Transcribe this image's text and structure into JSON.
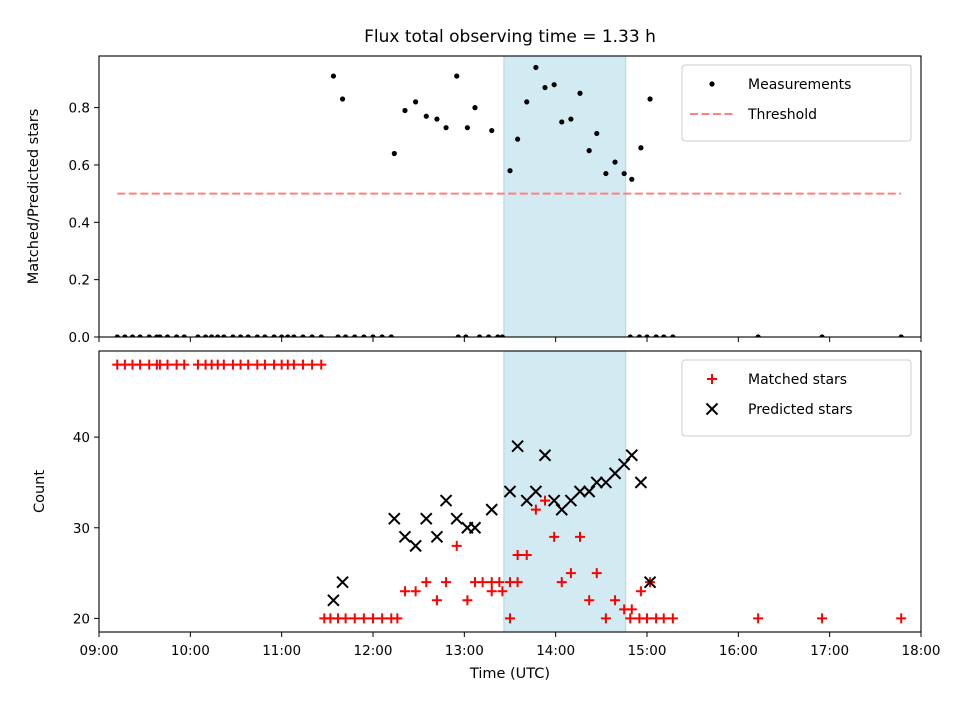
{
  "chart_data": [
    {
      "type": "scatter",
      "title": "Flux total observing time = 1.33 h",
      "ylabel": "Matched/Predicted stars",
      "xlabel": "",
      "xlim": [
        "09:00",
        "18:00"
      ],
      "ylim": [
        0,
        0.98
      ],
      "yticks": [
        "0.0",
        "0.2",
        "0.4",
        "0.6",
        "0.8"
      ],
      "legend_position": "top-right",
      "shaded_interval": {
        "start": "13:26",
        "end": "14:46",
        "color": "#add8e6"
      },
      "series": [
        {
          "name": "Measurements",
          "marker": "dot",
          "color": "#000000",
          "points": [
            [
              "09:12",
              0
            ],
            [
              "09:17",
              0
            ],
            [
              "09:22",
              0
            ],
            [
              "09:27",
              0
            ],
            [
              "09:33",
              0
            ],
            [
              "09:38",
              0
            ],
            [
              "09:40",
              0
            ],
            [
              "09:45",
              0
            ],
            [
              "09:51",
              0
            ],
            [
              "09:56",
              0
            ],
            [
              "10:05",
              0
            ],
            [
              "10:10",
              0
            ],
            [
              "10:14",
              0
            ],
            [
              "10:18",
              0
            ],
            [
              "10:22",
              0
            ],
            [
              "10:28",
              0
            ],
            [
              "10:33",
              0
            ],
            [
              "10:38",
              0
            ],
            [
              "10:44",
              0
            ],
            [
              "10:49",
              0
            ],
            [
              "10:55",
              0
            ],
            [
              "11:00",
              0
            ],
            [
              "11:04",
              0
            ],
            [
              "11:08",
              0
            ],
            [
              "11:14",
              0
            ],
            [
              "11:20",
              0
            ],
            [
              "11:26",
              0
            ],
            [
              "11:34",
              0.91
            ],
            [
              "11:40",
              0.83
            ],
            [
              "11:37",
              0
            ],
            [
              "11:42",
              0
            ],
            [
              "11:48",
              0
            ],
            [
              "11:54",
              0
            ],
            [
              "12:00",
              0
            ],
            [
              "12:06",
              0
            ],
            [
              "12:12",
              0
            ],
            [
              "12:14",
              0.64
            ],
            [
              "12:21",
              0.79
            ],
            [
              "12:28",
              0.82
            ],
            [
              "12:35",
              0.77
            ],
            [
              "12:42",
              0.76
            ],
            [
              "12:48",
              0.73
            ],
            [
              "12:55",
              0.91
            ],
            [
              "13:02",
              0.73
            ],
            [
              "13:07",
              0.8
            ],
            [
              "12:56",
              0
            ],
            [
              "13:01",
              0
            ],
            [
              "13:10",
              0
            ],
            [
              "13:16",
              0
            ],
            [
              "13:22",
              0
            ],
            [
              "13:25",
              0
            ],
            [
              "13:18",
              0.72
            ],
            [
              "13:30",
              0.58
            ],
            [
              "13:35",
              0.69
            ],
            [
              "13:41",
              0.82
            ],
            [
              "13:47",
              0.94
            ],
            [
              "13:53",
              0.87
            ],
            [
              "13:59",
              0.88
            ],
            [
              "14:04",
              0.75
            ],
            [
              "14:10",
              0.76
            ],
            [
              "14:16",
              0.85
            ],
            [
              "14:22",
              0.65
            ],
            [
              "14:27",
              0.71
            ],
            [
              "14:33",
              0.57
            ],
            [
              "14:39",
              0.61
            ],
            [
              "14:45",
              0.57
            ],
            [
              "14:50",
              0.55
            ],
            [
              "14:56",
              0.66
            ],
            [
              "15:02",
              0.83
            ],
            [
              "14:49",
              0
            ],
            [
              "14:55",
              0
            ],
            [
              "15:00",
              0
            ],
            [
              "15:06",
              0
            ],
            [
              "15:11",
              0
            ],
            [
              "15:17",
              0
            ],
            [
              "16:13",
              0
            ],
            [
              "16:55",
              0
            ],
            [
              "17:47",
              0
            ]
          ]
        },
        {
          "name": "Threshold",
          "marker": "dashed-line",
          "color": "#ff7f7f",
          "points": [
            [
              "09:12",
              0.5
            ],
            [
              "17:47",
              0.5
            ]
          ]
        }
      ]
    },
    {
      "type": "scatter",
      "title": "",
      "ylabel": "Count",
      "xlabel": "Time (UTC)",
      "xlim": [
        "09:00",
        "18:00"
      ],
      "xticks": [
        "09:00",
        "10:00",
        "11:00",
        "12:00",
        "13:00",
        "14:00",
        "15:00",
        "16:00",
        "17:00",
        "18:00"
      ],
      "ylim": [
        18.5,
        49.5
      ],
      "yticks": [
        "20",
        "30",
        "40"
      ],
      "legend_position": "top-right",
      "shaded_interval": {
        "start": "13:26",
        "end": "14:46",
        "color": "#add8e6"
      },
      "series": [
        {
          "name": "Matched stars",
          "marker": "plus",
          "color": "#ff0000",
          "points": [
            [
              "09:12",
              48
            ],
            [
              "09:17",
              48
            ],
            [
              "09:22",
              48
            ],
            [
              "09:27",
              48
            ],
            [
              "09:33",
              48
            ],
            [
              "09:38",
              48
            ],
            [
              "09:40",
              48
            ],
            [
              "09:45",
              48
            ],
            [
              "09:51",
              48
            ],
            [
              "09:56",
              48
            ],
            [
              "10:05",
              48
            ],
            [
              "10:10",
              48
            ],
            [
              "10:14",
              48
            ],
            [
              "10:18",
              48
            ],
            [
              "10:22",
              48
            ],
            [
              "10:28",
              48
            ],
            [
              "10:33",
              48
            ],
            [
              "10:38",
              48
            ],
            [
              "10:44",
              48
            ],
            [
              "10:49",
              48
            ],
            [
              "10:55",
              48
            ],
            [
              "11:00",
              48
            ],
            [
              "11:04",
              48
            ],
            [
              "11:08",
              48
            ],
            [
              "11:14",
              48
            ],
            [
              "11:20",
              48
            ],
            [
              "11:26",
              48
            ],
            [
              "11:28",
              20
            ],
            [
              "11:32",
              20
            ],
            [
              "11:37",
              20
            ],
            [
              "11:42",
              20
            ],
            [
              "11:48",
              20
            ],
            [
              "11:54",
              20
            ],
            [
              "12:00",
              20
            ],
            [
              "12:06",
              20
            ],
            [
              "12:12",
              20
            ],
            [
              "12:16",
              20
            ],
            [
              "12:21",
              23
            ],
            [
              "12:28",
              23
            ],
            [
              "12:35",
              24
            ],
            [
              "12:42",
              22
            ],
            [
              "12:48",
              24
            ],
            [
              "12:55",
              28
            ],
            [
              "13:02",
              22
            ],
            [
              "13:07",
              24
            ],
            [
              "13:12",
              24
            ],
            [
              "13:18",
              24
            ],
            [
              "13:23",
              24
            ],
            [
              "13:30",
              24
            ],
            [
              "13:35",
              24
            ],
            [
              "13:18",
              23
            ],
            [
              "13:25",
              23
            ],
            [
              "13:30",
              20
            ],
            [
              "13:35",
              27
            ],
            [
              "13:41",
              27
            ],
            [
              "13:47",
              32
            ],
            [
              "13:53",
              33
            ],
            [
              "13:59",
              29
            ],
            [
              "14:04",
              24
            ],
            [
              "14:10",
              25
            ],
            [
              "14:16",
              29
            ],
            [
              "14:22",
              22
            ],
            [
              "14:27",
              25
            ],
            [
              "14:33",
              20
            ],
            [
              "14:39",
              22
            ],
            [
              "14:45",
              21
            ],
            [
              "14:50",
              21
            ],
            [
              "14:56",
              23
            ],
            [
              "15:02",
              24
            ],
            [
              "14:49",
              20
            ],
            [
              "14:55",
              20
            ],
            [
              "15:00",
              20
            ],
            [
              "15:06",
              20
            ],
            [
              "15:11",
              20
            ],
            [
              "15:17",
              20
            ],
            [
              "16:13",
              20
            ],
            [
              "16:55",
              20
            ],
            [
              "17:47",
              20
            ]
          ]
        },
        {
          "name": "Predicted stars",
          "marker": "x",
          "color": "#000000",
          "points": [
            [
              "11:34",
              22
            ],
            [
              "11:40",
              24
            ],
            [
              "12:14",
              31
            ],
            [
              "12:21",
              29
            ],
            [
              "12:28",
              28
            ],
            [
              "12:35",
              31
            ],
            [
              "12:42",
              29
            ],
            [
              "12:48",
              33
            ],
            [
              "12:55",
              31
            ],
            [
              "13:02",
              30
            ],
            [
              "13:07",
              30
            ],
            [
              "13:18",
              32
            ],
            [
              "13:30",
              34
            ],
            [
              "13:35",
              39
            ],
            [
              "13:41",
              33
            ],
            [
              "13:47",
              34
            ],
            [
              "13:53",
              38
            ],
            [
              "13:59",
              33
            ],
            [
              "14:04",
              32
            ],
            [
              "14:10",
              33
            ],
            [
              "14:16",
              34
            ],
            [
              "14:22",
              34
            ],
            [
              "14:27",
              35
            ],
            [
              "14:33",
              35
            ],
            [
              "14:39",
              36
            ],
            [
              "14:45",
              37
            ],
            [
              "14:50",
              38
            ],
            [
              "14:56",
              35
            ],
            [
              "15:02",
              24
            ]
          ]
        }
      ]
    }
  ]
}
